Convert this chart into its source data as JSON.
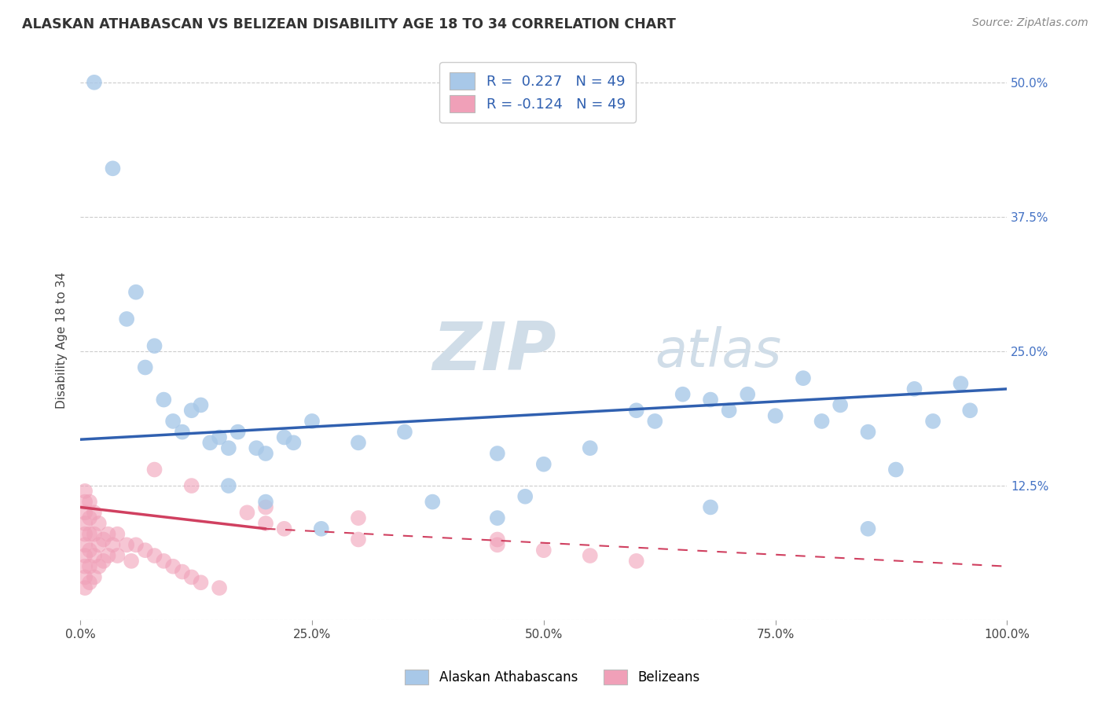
{
  "title": "ALASKAN ATHABASCAN VS BELIZEAN DISABILITY AGE 18 TO 34 CORRELATION CHART",
  "source": "Source: ZipAtlas.com",
  "ylabel": "Disability Age 18 to 34",
  "legend_label_blue": "Alaskan Athabascans",
  "legend_label_pink": "Belizeans",
  "R_blue": 0.227,
  "R_pink": -0.124,
  "N_blue": 49,
  "N_pink": 49,
  "color_blue": "#A8C8E8",
  "color_pink": "#F0A0B8",
  "line_color_blue": "#3060B0",
  "line_color_pink": "#D04060",
  "watermark_color": "#D8E8F0",
  "blue_dots": [
    [
      1.5,
      50.0
    ],
    [
      3.5,
      42.0
    ],
    [
      6.0,
      30.5
    ],
    [
      5.0,
      28.0
    ],
    [
      8.0,
      25.5
    ],
    [
      7.0,
      23.5
    ],
    [
      9.0,
      20.5
    ],
    [
      10.0,
      18.5
    ],
    [
      12.0,
      19.5
    ],
    [
      11.0,
      17.5
    ],
    [
      13.0,
      20.0
    ],
    [
      14.0,
      16.5
    ],
    [
      15.0,
      17.0
    ],
    [
      16.0,
      16.0
    ],
    [
      17.0,
      17.5
    ],
    [
      19.0,
      16.0
    ],
    [
      20.0,
      15.5
    ],
    [
      22.0,
      17.0
    ],
    [
      23.0,
      16.5
    ],
    [
      25.0,
      18.5
    ],
    [
      30.0,
      16.5
    ],
    [
      35.0,
      17.5
    ],
    [
      45.0,
      15.5
    ],
    [
      50.0,
      14.5
    ],
    [
      55.0,
      16.0
    ],
    [
      60.0,
      19.5
    ],
    [
      62.0,
      18.5
    ],
    [
      65.0,
      21.0
    ],
    [
      68.0,
      20.5
    ],
    [
      70.0,
      19.5
    ],
    [
      72.0,
      21.0
    ],
    [
      75.0,
      19.0
    ],
    [
      78.0,
      22.5
    ],
    [
      80.0,
      18.5
    ],
    [
      82.0,
      20.0
    ],
    [
      85.0,
      17.5
    ],
    [
      88.0,
      14.0
    ],
    [
      90.0,
      21.5
    ],
    [
      92.0,
      18.5
    ],
    [
      95.0,
      22.0
    ],
    [
      96.0,
      19.5
    ],
    [
      45.0,
      9.5
    ],
    [
      48.0,
      11.5
    ],
    [
      38.0,
      11.0
    ],
    [
      20.0,
      11.0
    ],
    [
      16.0,
      12.5
    ],
    [
      26.0,
      8.5
    ],
    [
      68.0,
      10.5
    ],
    [
      85.0,
      8.5
    ]
  ],
  "pink_dots_cluster": [
    [
      0.5,
      3.0
    ],
    [
      0.5,
      4.0
    ],
    [
      0.5,
      5.0
    ],
    [
      0.5,
      6.0
    ],
    [
      0.5,
      7.0
    ],
    [
      0.5,
      8.0
    ],
    [
      0.5,
      9.0
    ],
    [
      0.5,
      10.0
    ],
    [
      0.5,
      11.0
    ],
    [
      0.5,
      12.0
    ],
    [
      1.0,
      3.5
    ],
    [
      1.0,
      5.0
    ],
    [
      1.0,
      6.5
    ],
    [
      1.0,
      8.0
    ],
    [
      1.0,
      9.5
    ],
    [
      1.0,
      11.0
    ],
    [
      1.5,
      4.0
    ],
    [
      1.5,
      6.0
    ],
    [
      1.5,
      8.0
    ],
    [
      1.5,
      10.0
    ],
    [
      2.0,
      5.0
    ],
    [
      2.0,
      7.0
    ],
    [
      2.0,
      9.0
    ],
    [
      2.5,
      5.5
    ],
    [
      2.5,
      7.5
    ],
    [
      3.0,
      6.0
    ],
    [
      3.0,
      8.0
    ],
    [
      3.5,
      7.0
    ],
    [
      4.0,
      8.0
    ],
    [
      4.0,
      6.0
    ],
    [
      5.0,
      7.0
    ],
    [
      5.5,
      5.5
    ],
    [
      6.0,
      7.0
    ],
    [
      7.0,
      6.5
    ],
    [
      8.0,
      6.0
    ],
    [
      9.0,
      5.5
    ],
    [
      10.0,
      5.0
    ],
    [
      11.0,
      4.5
    ],
    [
      12.0,
      4.0
    ],
    [
      13.0,
      3.5
    ],
    [
      15.0,
      3.0
    ],
    [
      18.0,
      10.0
    ],
    [
      20.0,
      9.0
    ],
    [
      22.0,
      8.5
    ],
    [
      30.0,
      7.5
    ],
    [
      45.0,
      7.0
    ],
    [
      50.0,
      6.5
    ],
    [
      55.0,
      6.0
    ],
    [
      60.0,
      5.5
    ]
  ],
  "pink_extra": [
    [
      8.0,
      14.0
    ],
    [
      12.0,
      12.5
    ],
    [
      20.0,
      10.5
    ],
    [
      30.0,
      9.5
    ],
    [
      45.0,
      7.5
    ]
  ],
  "xlim": [
    0,
    100
  ],
  "ylim": [
    0,
    52
  ],
  "yticks": [
    0,
    12.5,
    25.0,
    37.5,
    50.0
  ],
  "xticks": [
    0,
    25,
    50,
    75,
    100
  ],
  "xticklabels": [
    "0.0%",
    "25.0%",
    "50.0%",
    "75.0%",
    "100.0%"
  ],
  "yticklabels_right": [
    "",
    "12.5%",
    "25.0%",
    "37.5%",
    "50.0%"
  ],
  "background_color": "#FFFFFF",
  "grid_color": "#CCCCCC",
  "blue_line": {
    "x0": 0,
    "y0": 16.8,
    "x1": 100,
    "y1": 21.5
  },
  "pink_line_solid": {
    "x0": 0,
    "y0": 10.5,
    "x1": 20,
    "y1": 8.5
  },
  "pink_line_dash": {
    "x0": 20,
    "y0": 8.5,
    "x1": 100,
    "y1": 5.0
  }
}
